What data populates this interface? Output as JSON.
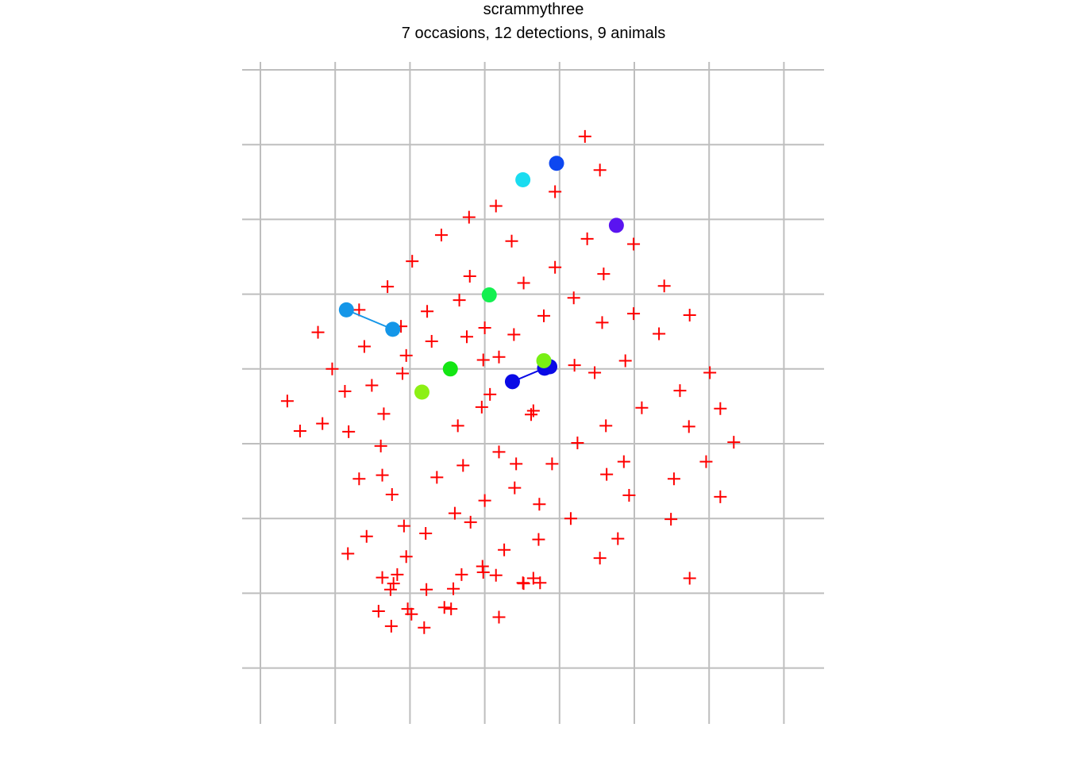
{
  "chart_data": {
    "type": "scatter",
    "title": "scrammythree",
    "subtitle": "7 occasions, 12 detections, 9 animals",
    "grid": true,
    "xlim": [
      -1,
      6
    ],
    "ylim": [
      -7.5,
      0.3
    ],
    "grid_x": [
      0,
      1,
      2,
      3,
      4,
      5,
      6,
      7
    ],
    "grid_y": [
      -8,
      -7,
      -6,
      -5,
      -4,
      -3,
      -2,
      -1,
      0
    ],
    "traps": {
      "name": "traps",
      "marker": "plus",
      "color": "#FF0000",
      "points": [
        [
          4.34,
          -0.89
        ],
        [
          4.54,
          -1.34
        ],
        [
          3.94,
          -1.63
        ],
        [
          3.15,
          -1.82
        ],
        [
          2.79,
          -1.97
        ],
        [
          4.37,
          -2.26
        ],
        [
          4.99,
          -2.33
        ],
        [
          3.36,
          -2.29
        ],
        [
          2.42,
          -2.21
        ],
        [
          2.03,
          -2.56
        ],
        [
          2.8,
          -2.76
        ],
        [
          3.94,
          -2.64
        ],
        [
          4.59,
          -2.73
        ],
        [
          5.4,
          -2.89
        ],
        [
          1.7,
          -2.9
        ],
        [
          3.52,
          -2.85
        ],
        [
          3.0,
          -3.45
        ],
        [
          2.66,
          -3.08
        ],
        [
          1.32,
          -3.21
        ],
        [
          4.19,
          -3.05
        ],
        [
          4.99,
          -3.26
        ],
        [
          5.74,
          -3.28
        ],
        [
          2.23,
          -3.23
        ],
        [
          3.79,
          -3.29
        ],
        [
          4.57,
          -3.38
        ],
        [
          2.76,
          -3.57
        ],
        [
          3.39,
          -3.54
        ],
        [
          0.77,
          -3.51
        ],
        [
          1.88,
          -3.43
        ],
        [
          5.33,
          -3.53
        ],
        [
          3.19,
          -3.84
        ],
        [
          2.29,
          -3.63
        ],
        [
          1.39,
          -3.7
        ],
        [
          4.2,
          -3.95
        ],
        [
          1.95,
          -3.82
        ],
        [
          2.98,
          -3.88
        ],
        [
          0.96,
          -4.0
        ],
        [
          1.9,
          -4.06
        ],
        [
          4.88,
          -3.89
        ],
        [
          4.47,
          -4.05
        ],
        [
          6.01,
          -4.05
        ],
        [
          3.07,
          -4.34
        ],
        [
          1.49,
          -4.22
        ],
        [
          0.36,
          -4.43
        ],
        [
          5.61,
          -4.29
        ],
        [
          3.65,
          -4.56
        ],
        [
          1.13,
          -4.3
        ],
        [
          0.83,
          -4.73
        ],
        [
          2.96,
          -4.51
        ],
        [
          5.1,
          -4.52
        ],
        [
          6.15,
          -4.53
        ],
        [
          1.65,
          -4.6
        ],
        [
          3.62,
          -4.61
        ],
        [
          0.53,
          -4.83
        ],
        [
          4.62,
          -4.76
        ],
        [
          5.73,
          -4.77
        ],
        [
          2.64,
          -4.76
        ],
        [
          1.18,
          -4.84
        ],
        [
          4.24,
          -4.99
        ],
        [
          6.33,
          -4.98
        ],
        [
          1.61,
          -5.03
        ],
        [
          3.19,
          -5.11
        ],
        [
          3.42,
          -5.27
        ],
        [
          2.71,
          -5.29
        ],
        [
          1.63,
          -5.42
        ],
        [
          4.86,
          -5.24
        ],
        [
          5.96,
          -5.24
        ],
        [
          3.9,
          -5.27
        ],
        [
          4.63,
          -5.41
        ],
        [
          2.36,
          -5.45
        ],
        [
          3.4,
          -5.59
        ],
        [
          1.32,
          -5.47
        ],
        [
          5.53,
          -5.47
        ],
        [
          1.76,
          -5.68
        ],
        [
          3.73,
          -5.81
        ],
        [
          4.93,
          -5.69
        ],
        [
          3.0,
          -5.76
        ],
        [
          2.6,
          -5.93
        ],
        [
          6.15,
          -5.71
        ],
        [
          1.92,
          -6.1
        ],
        [
          4.15,
          -6.0
        ],
        [
          5.49,
          -6.01
        ],
        [
          1.42,
          -6.24
        ],
        [
          2.81,
          -6.05
        ],
        [
          3.72,
          -6.28
        ],
        [
          4.78,
          -6.27
        ],
        [
          2.21,
          -6.2
        ],
        [
          1.17,
          -6.47
        ],
        [
          3.26,
          -6.42
        ],
        [
          4.54,
          -6.53
        ],
        [
          1.95,
          -6.51
        ],
        [
          2.97,
          -6.64
        ],
        [
          3.65,
          -6.8
        ],
        [
          2.58,
          -6.94
        ],
        [
          2.46,
          -7.19
        ],
        [
          2.19,
          -7.46
        ],
        [
          1.75,
          -7.44
        ],
        [
          3.52,
          -6.87
        ],
        [
          1.74,
          -6.95
        ],
        [
          2.22,
          -6.95
        ],
        [
          3.74,
          -6.86
        ],
        [
          2.69,
          -6.75
        ],
        [
          1.63,
          -6.79
        ],
        [
          5.74,
          -6.8
        ],
        [
          3.51,
          -6.86
        ],
        [
          2.98,
          -6.72
        ],
        [
          1.83,
          -6.75
        ],
        [
          3.15,
          -6.76
        ],
        [
          1.78,
          -6.87
        ],
        [
          1.97,
          -7.21
        ],
        [
          2.55,
          -7.21
        ],
        [
          3.19,
          -7.32
        ],
        [
          1.58,
          -7.24
        ],
        [
          2.02,
          -7.28
        ]
      ]
    },
    "animals": [
      {
        "color": "#0D47F0",
        "points": [
          [
            3.96,
            -1.25
          ]
        ]
      },
      {
        "color": "#1ADCF0",
        "points": [
          [
            3.51,
            -1.47
          ]
        ]
      },
      {
        "color": "#5A14F0",
        "points": [
          [
            4.76,
            -2.08
          ]
        ]
      },
      {
        "color": "#14F050",
        "points": [
          [
            3.06,
            -3.01
          ]
        ]
      },
      {
        "color": "#1496E8",
        "points": [
          [
            1.15,
            -3.21
          ],
          [
            1.77,
            -3.47
          ]
        ]
      },
      {
        "color": "#0A0AE6",
        "points": [
          [
            3.87,
            -3.97
          ],
          [
            3.8,
            -3.99
          ],
          [
            3.37,
            -4.17
          ]
        ]
      },
      {
        "color": "#78F014",
        "points": [
          [
            3.79,
            -3.89
          ]
        ]
      },
      {
        "color": "#14E614",
        "points": [
          [
            2.54,
            -4.0
          ]
        ]
      },
      {
        "color": "#8CF014",
        "points": [
          [
            2.16,
            -4.31
          ]
        ]
      }
    ]
  }
}
